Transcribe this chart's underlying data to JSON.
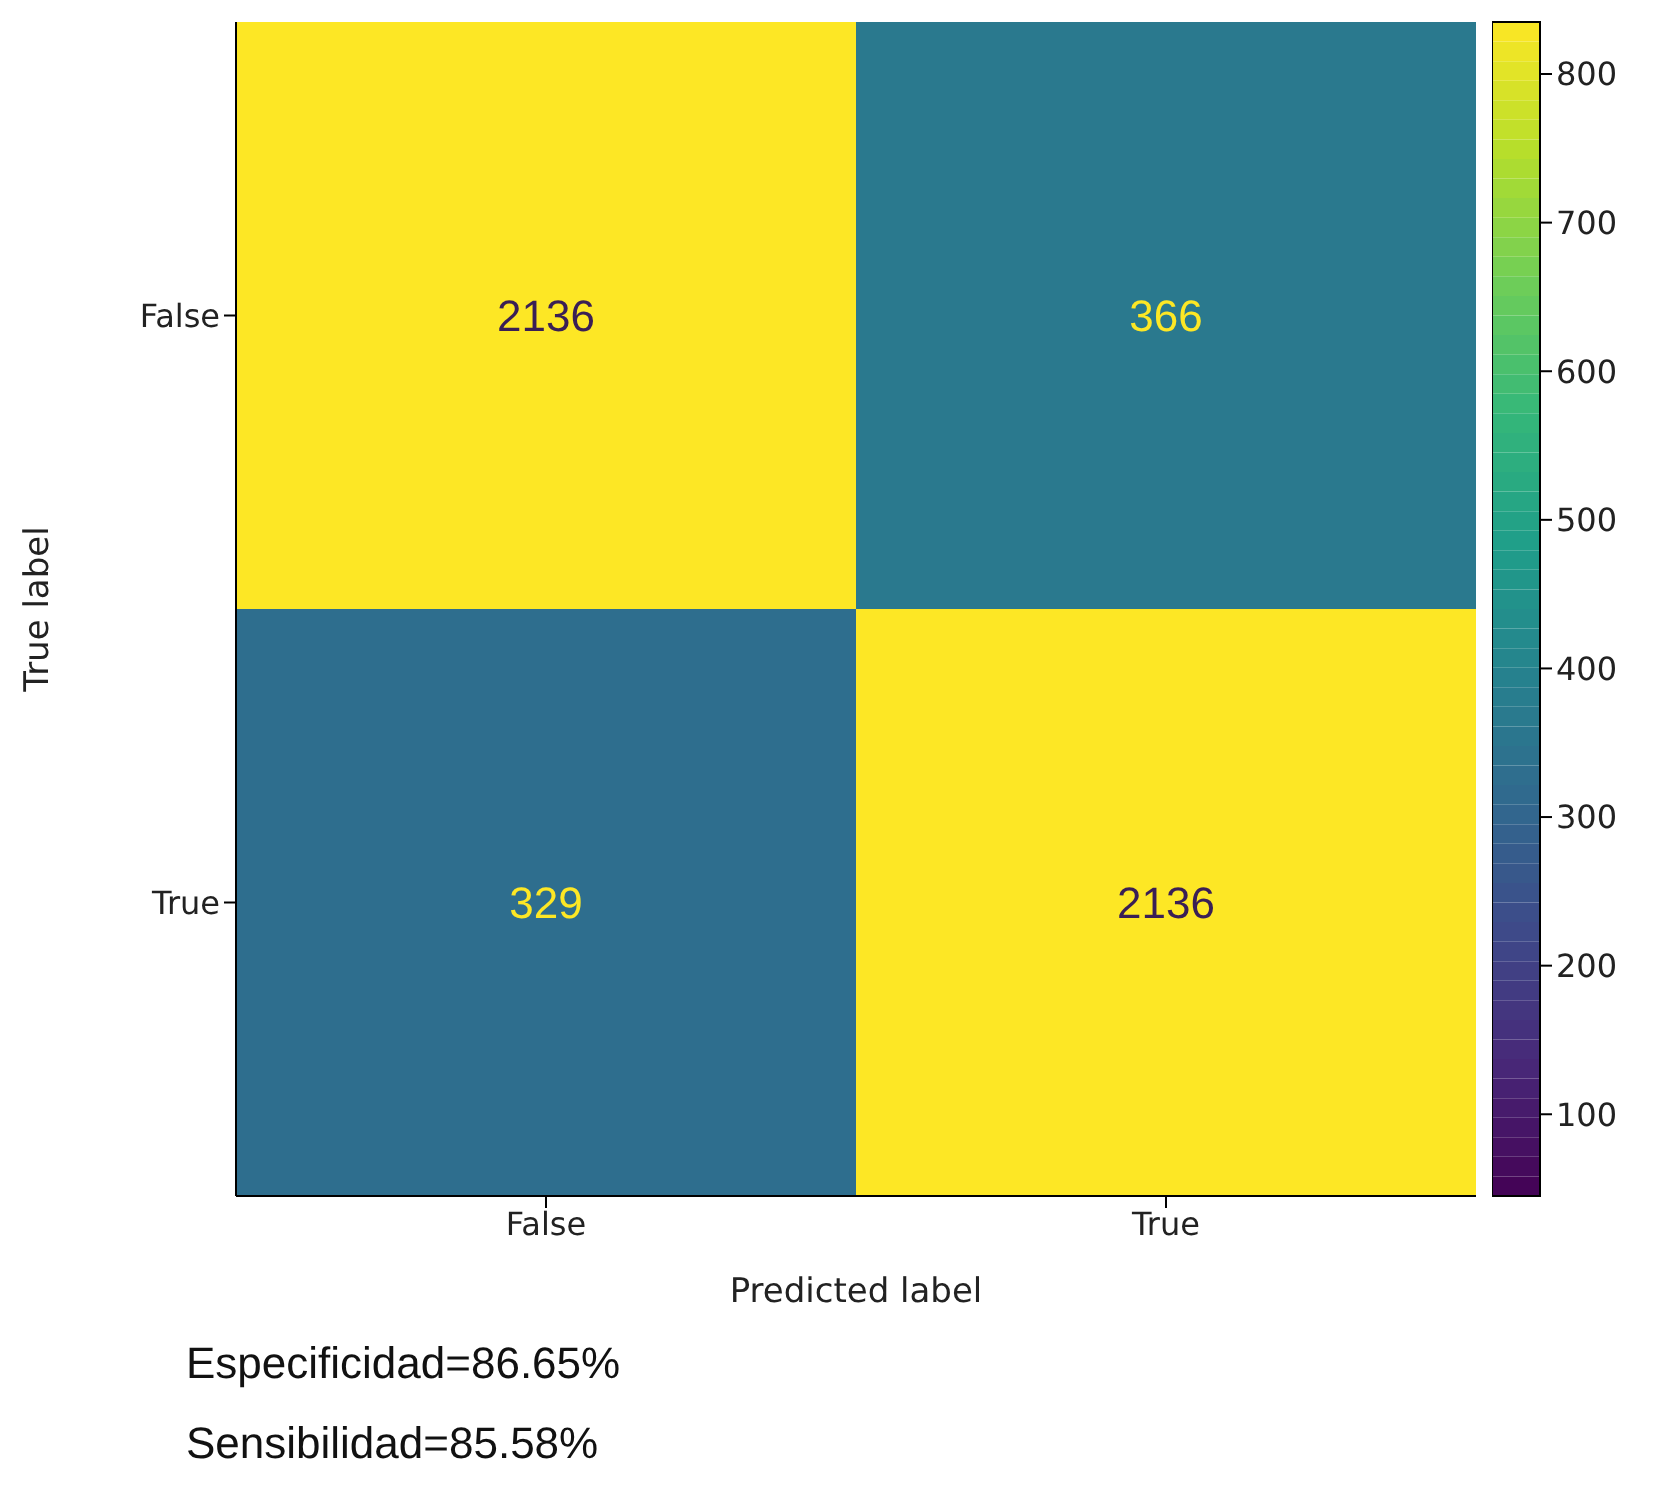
{
  "chart_data": {
    "type": "heatmap",
    "xlabel": "Predicted label",
    "ylabel": "True label",
    "categories": [
      "False",
      "True"
    ],
    "y_categories": [
      "False",
      "True"
    ],
    "cells": [
      [
        2136,
        366
      ],
      [
        329,
        2136
      ]
    ],
    "data_labels": true,
    "clim": [
      45,
      835
    ],
    "cticks": [
      100,
      200,
      300,
      400,
      500,
      600,
      700,
      800
    ],
    "annotations": [
      "Especificidad=86.65%",
      "Sensibilidad=85.58%"
    ]
  }
}
